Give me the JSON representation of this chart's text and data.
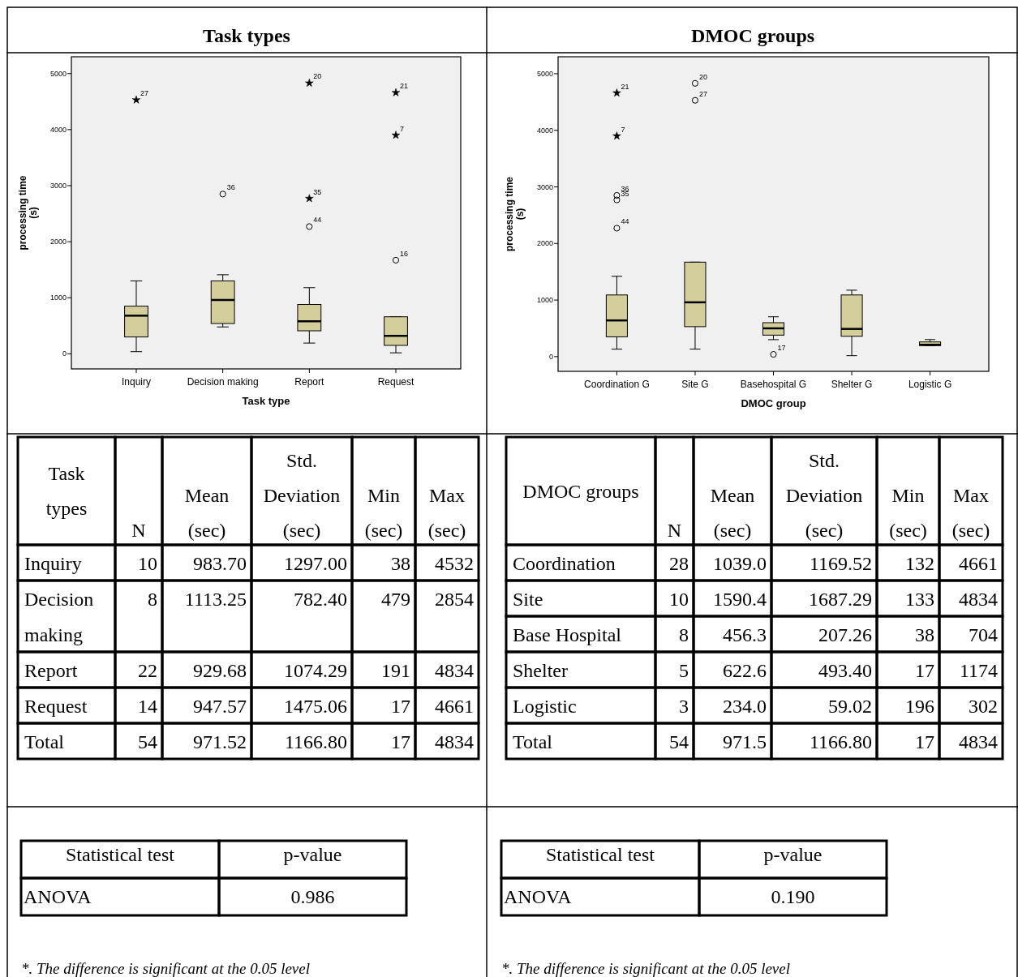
{
  "chart_data": [
    {
      "type": "box",
      "title": "Task types",
      "xlabel": "Task type",
      "ylabel": "processing time (s)",
      "color": "#d3ce9c",
      "categories": [
        "Inquiry",
        "Decision making",
        "Report",
        "Request"
      ],
      "boxes": [
        {
          "low": 38,
          "q1": 300,
          "median": 680,
          "q3": 850,
          "high": 1300
        },
        {
          "low": 479,
          "q1": 540,
          "median": 960,
          "q3": 1300,
          "high": 1410
        },
        {
          "low": 191,
          "q1": 410,
          "median": 580,
          "q3": 880,
          "high": 1180
        },
        {
          "low": 17,
          "q1": 150,
          "median": 320,
          "q3": 660,
          "high": 660
        }
      ],
      "series": [
        {
          "type": "scatter",
          "marker": "star",
          "color": "#000000",
          "x": [
            "Inquiry",
            "Report",
            "Report",
            "Request",
            "Request"
          ],
          "values": [
            4530,
            4830,
            2770,
            4660,
            3900
          ]
        },
        {
          "type": "scatter",
          "marker": "circle",
          "color": "#000000",
          "x": [
            "Decision making",
            "Report",
            "Request"
          ],
          "values": [
            2850,
            2270,
            1670
          ]
        }
      ],
      "annotations": [
        {
          "text": "27",
          "x": "Inquiry",
          "y": 4530
        },
        {
          "text": "36",
          "x": "Decision making",
          "y": 2850
        },
        {
          "text": "20",
          "x": "Report",
          "y": 4830
        },
        {
          "text": "35",
          "x": "Report",
          "y": 2770
        },
        {
          "text": "44",
          "x": "Report",
          "y": 2270
        },
        {
          "text": "21",
          "x": "Request",
          "y": 4660
        },
        {
          "text": "7",
          "x": "Request",
          "y": 3900
        },
        {
          "text": "16",
          "x": "Request",
          "y": 1670
        }
      ],
      "ylim": [
        -270,
        5300
      ],
      "yticks": [
        0,
        1000,
        2000,
        3000,
        4000,
        5000
      ],
      "grid": false
    },
    {
      "type": "box",
      "title": "DMOC groups",
      "xlabel": "DMOC group",
      "ylabel": "processing time (s)",
      "color": "#d3ce9c",
      "categories": [
        "Coordination G",
        "Site G",
        "Basehospital G",
        "Shelter G",
        "Logistic G"
      ],
      "boxes": [
        {
          "low": 132,
          "q1": 350,
          "median": 640,
          "q3": 1090,
          "high": 1420
        },
        {
          "low": 133,
          "q1": 530,
          "median": 960,
          "q3": 1670,
          "high": 1670
        },
        {
          "low": 300,
          "q1": 380,
          "median": 500,
          "q3": 600,
          "high": 704
        },
        {
          "low": 17,
          "q1": 360,
          "median": 490,
          "q3": 1090,
          "high": 1174
        },
        {
          "low": 196,
          "q1": 196,
          "median": 210,
          "q3": 260,
          "high": 302
        }
      ],
      "series": [
        {
          "type": "scatter",
          "marker": "star",
          "color": "#000000",
          "x": [
            "Coordination G",
            "Coordination G"
          ],
          "values": [
            4660,
            3900
          ]
        },
        {
          "type": "scatter",
          "marker": "circle",
          "color": "#000000",
          "x": [
            "Coordination G",
            "Coordination G",
            "Coordination G",
            "Site G",
            "Site G",
            "Basehospital G"
          ],
          "values": [
            2850,
            2770,
            2270,
            4830,
            4530,
            40
          ]
        }
      ],
      "annotations": [
        {
          "text": "21",
          "x": "Coordination G",
          "y": 4660
        },
        {
          "text": "7",
          "x": "Coordination G",
          "y": 3900
        },
        {
          "text": "36",
          "x": "Coordination G",
          "y": 2850
        },
        {
          "text": "35",
          "x": "Coordination G",
          "y": 2770
        },
        {
          "text": "44",
          "x": "Coordination G",
          "y": 2270
        },
        {
          "text": "20",
          "x": "Site G",
          "y": 4830
        },
        {
          "text": "27",
          "x": "Site G",
          "y": 4530
        },
        {
          "text": "17",
          "x": "Basehospital G",
          "y": 40
        }
      ],
      "ylim": [
        -260,
        5300
      ],
      "yticks": [
        0,
        1000,
        2000,
        3000,
        4000,
        5000
      ],
      "grid": false
    },
    {
      "type": "other",
      "categories": [
        "Task types",
        "N",
        "Mean (sec)",
        "Std. Deviation (sec)",
        "Min (sec)",
        "Max (sec)"
      ],
      "y_categories": [
        "Inquiry",
        "Decision making",
        "Report",
        "Request",
        "Total"
      ],
      "cell_labels": [
        [
          "10",
          "983.70",
          "1297.00",
          "38",
          "4532"
        ],
        [
          "8",
          "1113.25",
          "782.40",
          "479",
          "2854"
        ],
        [
          "22",
          "929.68",
          "1074.29",
          "191",
          "4834"
        ],
        [
          "14",
          "947.57",
          "1475.06",
          "17",
          "4661"
        ],
        [
          "54",
          "971.52",
          "1166.80",
          "17",
          "4834"
        ]
      ]
    },
    {
      "type": "other",
      "categories": [
        "DMOC groups",
        "N",
        "Mean (sec)",
        "Std. Deviation (sec)",
        "Min (sec)",
        "Max (sec)"
      ],
      "y_categories": [
        "Coordination",
        "Site",
        "Base Hospital",
        "Shelter",
        "Logistic",
        "Total"
      ],
      "cell_labels": [
        [
          "28",
          "1039.0",
          "1169.52",
          "132",
          "4661"
        ],
        [
          "10",
          "1590.4",
          "1687.29",
          "133",
          "4834"
        ],
        [
          "8",
          "456.3",
          "207.26",
          "38",
          "704"
        ],
        [
          "5",
          "622.6",
          "493.40",
          "17",
          "1174"
        ],
        [
          "3",
          "234.0",
          "59.02",
          "196",
          "302"
        ],
        [
          "54",
          "971.5",
          "1166.80",
          "17",
          "4834"
        ]
      ]
    },
    {
      "type": "other",
      "categories": [
        "Statistical test",
        "p-value"
      ],
      "y_categories": [
        "ANOVA"
      ],
      "cell_labels": [
        [
          "0.986"
        ]
      ],
      "annotations": [
        "*. The difference is significant at the 0.05 level"
      ]
    },
    {
      "type": "other",
      "categories": [
        "Statistical test",
        "p-value"
      ],
      "y_categories": [
        "ANOVA"
      ],
      "cell_labels": [
        [
          "0.190"
        ]
      ],
      "annotations": [
        "*. The difference is significant at the 0.05 level"
      ]
    }
  ]
}
